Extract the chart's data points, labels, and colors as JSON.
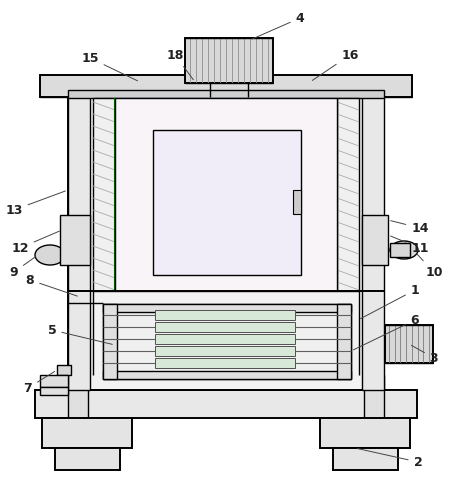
{
  "bg_color": "#ffffff",
  "lc": "#4a4a4a",
  "lc_dark": "#000000",
  "fc_body": "#f2f2f2",
  "fc_col": "#e8e8e8",
  "fc_top": "#dcdcdc",
  "fc_roller": "#e0e8e0",
  "fc_inner": "#f5f0f5",
  "fc_hatch": "#e8dce8",
  "fc_motor": "#d8d8d8",
  "fc_base": "#e4e4e4",
  "green": "#007000",
  "hatch_color": "#b090b0"
}
